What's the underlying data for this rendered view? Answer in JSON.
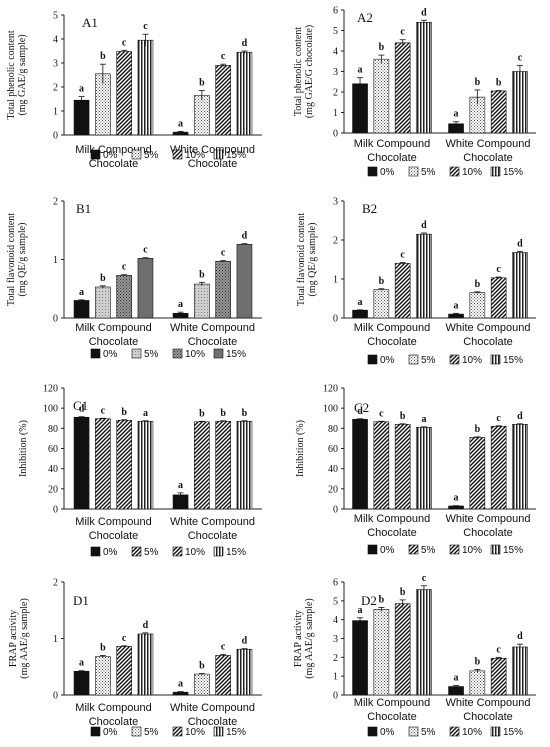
{
  "chart_data": [
    {
      "type": "bar",
      "panel_label": "A1",
      "ylabel_lines": [
        "Total phenolic content",
        "(mg GAE/g sample)"
      ],
      "yticks": [
        0,
        1,
        2,
        3,
        4,
        5
      ],
      "ylim": [
        0,
        5
      ],
      "categories": [
        [
          "Milk Compound",
          "Chocolate"
        ],
        [
          "White Compound",
          "Chocolate"
        ]
      ],
      "series": [
        {
          "name": "0%",
          "values": [
            1.45,
            0.12
          ],
          "errors": [
            0.15,
            0.03
          ],
          "letters": [
            "a",
            "a"
          ]
        },
        {
          "name": "5%",
          "values": [
            2.55,
            1.65
          ],
          "errors": [
            0.4,
            0.2
          ],
          "letters": [
            "b",
            "b"
          ]
        },
        {
          "name": "10%",
          "values": [
            3.48,
            2.9
          ],
          "errors": [
            0.05,
            0.05
          ],
          "letters": [
            "c",
            "c"
          ]
        },
        {
          "name": "15%",
          "values": [
            3.95,
            3.45
          ],
          "errors": [
            0.25,
            0.05
          ],
          "letters": [
            "c",
            "d"
          ]
        }
      ]
    },
    {
      "type": "bar",
      "panel_label": "A2",
      "ylabel_lines": [
        "Total phenolic content",
        "(mg GAE/G chocolate)"
      ],
      "yticks": [
        0,
        1,
        2,
        3,
        4,
        5,
        6
      ],
      "ylim": [
        0,
        6
      ],
      "categories": [
        [
          "Milk Compound",
          "Chocolate"
        ],
        [
          "White Compound",
          "Chocolate"
        ]
      ],
      "series": [
        {
          "name": "0%",
          "values": [
            2.4,
            0.45
          ],
          "errors": [
            0.3,
            0.1
          ],
          "letters": [
            "a",
            "a"
          ]
        },
        {
          "name": "5%",
          "values": [
            3.6,
            1.75
          ],
          "errors": [
            0.2,
            0.35
          ],
          "letters": [
            "b",
            "b"
          ]
        },
        {
          "name": "10%",
          "values": [
            4.4,
            2.05
          ],
          "errors": [
            0.15,
            0.02
          ],
          "letters": [
            "c",
            "b"
          ]
        },
        {
          "name": "15%",
          "values": [
            5.4,
            3.0
          ],
          "errors": [
            0.1,
            0.3
          ],
          "letters": [
            "d",
            "c"
          ]
        }
      ]
    },
    {
      "type": "bar",
      "panel_label": "B1",
      "ylabel_lines": [
        "Total flavonoid content",
        "(mg QE/g sample)"
      ],
      "yticks": [
        0,
        1,
        2
      ],
      "ylim": [
        0,
        2
      ],
      "categories": [
        [
          "Milk Compound",
          "Chocolate"
        ],
        [
          "White Compound",
          "Chocolate"
        ]
      ],
      "series": [
        {
          "name": "0%",
          "values": [
            0.3,
            0.08
          ],
          "errors": [
            0.01,
            0.02
          ],
          "letters": [
            "a",
            "a"
          ]
        },
        {
          "name": "5%",
          "values": [
            0.53,
            0.58
          ],
          "errors": [
            0.02,
            0.03
          ],
          "letters": [
            "b",
            "b"
          ]
        },
        {
          "name": "10%",
          "values": [
            0.73,
            0.97
          ],
          "errors": [
            0.01,
            0.01
          ],
          "letters": [
            "c",
            "c"
          ]
        },
        {
          "name": "15%",
          "values": [
            1.02,
            1.26
          ],
          "errors": [
            0.01,
            0.01
          ],
          "letters": [
            "c",
            "d"
          ]
        }
      ]
    },
    {
      "type": "bar",
      "panel_label": "B2",
      "ylabel_lines": [
        "Total flavonoid content",
        "(mg QE/g sample)"
      ],
      "yticks": [
        0,
        1,
        2,
        3
      ],
      "ylim": [
        0,
        3
      ],
      "categories": [
        [
          "Milk Compound",
          "Chocolate"
        ],
        [
          "White Compound",
          "Chocolate"
        ]
      ],
      "series": [
        {
          "name": "0%",
          "values": [
            0.2,
            0.1
          ],
          "errors": [
            0.01,
            0.02
          ],
          "letters": [
            "a",
            "a"
          ]
        },
        {
          "name": "5%",
          "values": [
            0.73,
            0.65
          ],
          "errors": [
            0.02,
            0.02
          ],
          "letters": [
            "b",
            "b"
          ]
        },
        {
          "name": "10%",
          "values": [
            1.4,
            1.03
          ],
          "errors": [
            0.02,
            0.02
          ],
          "letters": [
            "c",
            "c"
          ]
        },
        {
          "name": "15%",
          "values": [
            2.15,
            1.68
          ],
          "errors": [
            0.03,
            0.03
          ],
          "letters": [
            "d",
            "d"
          ]
        }
      ]
    },
    {
      "type": "bar",
      "panel_label": "C1",
      "ylabel_lines": [
        "Inhibition (%)"
      ],
      "yticks": [
        0,
        20,
        40,
        60,
        80,
        100,
        120
      ],
      "ylim": [
        0,
        120
      ],
      "categories": [
        [
          "Milk Compound",
          "Chocolate"
        ],
        [
          "White Compound",
          "Chocolate"
        ]
      ],
      "series": [
        {
          "name": "0%",
          "values": [
            91,
            14
          ],
          "errors": [
            0.5,
            2
          ],
          "letters": [
            "d",
            "a"
          ]
        },
        {
          "name": "5%",
          "values": [
            89.5,
            86.5
          ],
          "errors": [
            0.5,
            0.5
          ],
          "letters": [
            "c",
            "b"
          ]
        },
        {
          "name": "10%",
          "values": [
            88,
            87
          ],
          "errors": [
            0.5,
            0.5
          ],
          "letters": [
            "b",
            "b"
          ]
        },
        {
          "name": "15%",
          "values": [
            87,
            87
          ],
          "errors": [
            0.5,
            0.5
          ],
          "letters": [
            "a",
            "b"
          ]
        }
      ]
    },
    {
      "type": "bar",
      "panel_label": "C2",
      "ylabel_lines": [
        "Inhibition (%)"
      ],
      "yticks": [
        0,
        20,
        40,
        60,
        80,
        100,
        120
      ],
      "ylim": [
        0,
        120
      ],
      "categories": [
        [
          "Milk Compound",
          "Chocolate"
        ],
        [
          "White Compound",
          "Chocolate"
        ]
      ],
      "series": [
        {
          "name": "0%",
          "values": [
            89,
            3
          ],
          "errors": [
            0.5,
            0.3
          ],
          "letters": [
            "d",
            "a"
          ]
        },
        {
          "name": "5%",
          "values": [
            86.5,
            71
          ],
          "errors": [
            0.5,
            0.5
          ],
          "letters": [
            "c",
            "b"
          ]
        },
        {
          "name": "10%",
          "values": [
            84,
            82
          ],
          "errors": [
            0.5,
            0.5
          ],
          "letters": [
            "b",
            "c"
          ]
        },
        {
          "name": "15%",
          "values": [
            81,
            84
          ],
          "errors": [
            0.5,
            0.5
          ],
          "letters": [
            "a",
            "d"
          ]
        }
      ]
    },
    {
      "type": "bar",
      "panel_label": "D1",
      "ylabel_lines": [
        "FRAP activity",
        "(mg AAE/g sample)"
      ],
      "yticks": [
        0,
        1,
        2
      ],
      "ylim": [
        0,
        2
      ],
      "categories": [
        [
          "Milk Compound",
          "Chocolate"
        ],
        [
          "White Compound",
          "Chocolate"
        ]
      ],
      "series": [
        {
          "name": "0%",
          "values": [
            0.42,
            0.05
          ],
          "errors": [
            0.01,
            0.01
          ],
          "letters": [
            "a",
            "a"
          ]
        },
        {
          "name": "5%",
          "values": [
            0.68,
            0.37
          ],
          "errors": [
            0.02,
            0.01
          ],
          "letters": [
            "b",
            "b"
          ]
        },
        {
          "name": "10%",
          "values": [
            0.86,
            0.7
          ],
          "errors": [
            0.01,
            0.02
          ],
          "letters": [
            "c",
            "c"
          ]
        },
        {
          "name": "15%",
          "values": [
            1.08,
            0.81
          ],
          "errors": [
            0.02,
            0.01
          ],
          "letters": [
            "d",
            "d"
          ]
        }
      ]
    },
    {
      "type": "bar",
      "panel_label": "D2",
      "ylabel_lines": [
        "FRAP activity",
        "(mg AAE/g sample)"
      ],
      "yticks": [
        0,
        1,
        2,
        3,
        4,
        5,
        6
      ],
      "ylim": [
        0,
        6
      ],
      "categories": [
        [
          "Milk Compound",
          "Chocolate"
        ],
        [
          "White Compound",
          "Chocolate"
        ]
      ],
      "series": [
        {
          "name": "0%",
          "values": [
            3.95,
            0.45
          ],
          "errors": [
            0.15,
            0.05
          ],
          "letters": [
            "a",
            "a"
          ]
        },
        {
          "name": "5%",
          "values": [
            4.55,
            1.28
          ],
          "errors": [
            0.1,
            0.08
          ],
          "letters": [
            "b",
            "b"
          ]
        },
        {
          "name": "10%",
          "values": [
            4.85,
            1.95
          ],
          "errors": [
            0.2,
            0.05
          ],
          "letters": [
            "b",
            "c"
          ]
        },
        {
          "name": "15%",
          "values": [
            5.6,
            2.55
          ],
          "errors": [
            0.2,
            0.15
          ],
          "letters": [
            "c",
            "d"
          ]
        }
      ]
    }
  ]
}
